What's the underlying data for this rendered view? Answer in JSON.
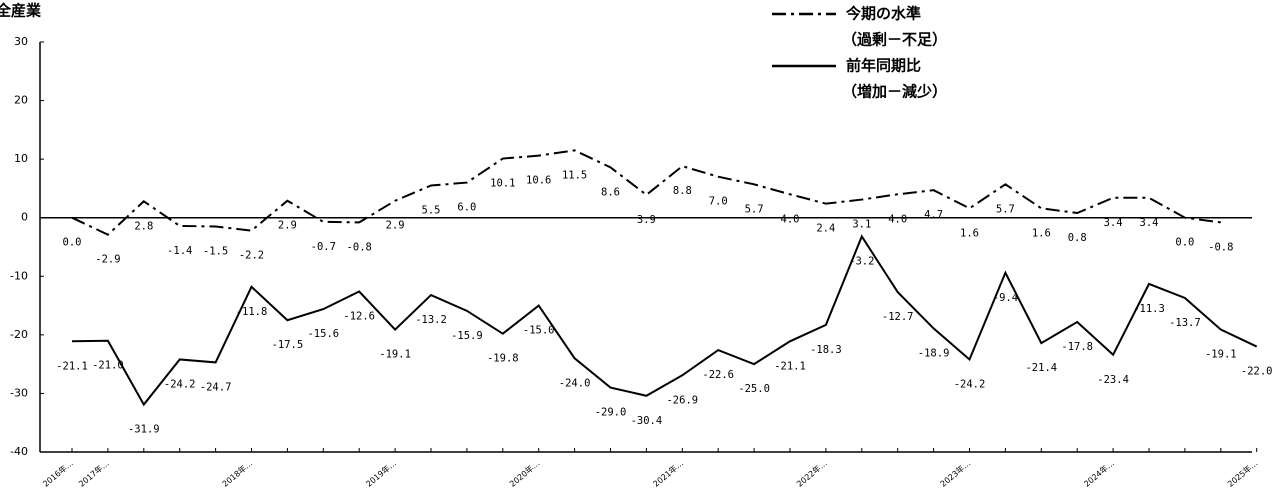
{
  "chart_data": {
    "type": "line",
    "title": "全産業",
    "categories": [
      "2016年…",
      "2017年…",
      null,
      null,
      null,
      "2018年…",
      null,
      null,
      null,
      "2019年…",
      null,
      null,
      null,
      "2020年…",
      null,
      null,
      null,
      "2021年…",
      null,
      null,
      null,
      "2022年…",
      null,
      null,
      null,
      "2023年…",
      null,
      null,
      null,
      "2024年…",
      null,
      null,
      null,
      "2025年…"
    ],
    "series": [
      {
        "name": "今期の水準",
        "note": "（過剰－不足）",
        "color": "#000000",
        "dash": "dashdot",
        "values": [
          0.0,
          -2.9,
          2.8,
          -1.4,
          -1.5,
          -2.2,
          2.9,
          -0.7,
          -0.8,
          2.9,
          5.5,
          6.0,
          10.1,
          10.6,
          11.5,
          8.6,
          3.9,
          8.8,
          7.0,
          5.7,
          4.0,
          2.4,
          3.1,
          4.0,
          4.7,
          1.6,
          5.7,
          1.6,
          0.8,
          3.4,
          3.4,
          0.0,
          -0.8,
          null
        ],
        "value_labels": [
          "0.0",
          "-2.9",
          "2.8",
          "-1.4",
          "-1.5",
          "-2.2",
          "2.9",
          "-0.7",
          "-0.8",
          "2.9",
          "5.5",
          "6.0",
          "10.1",
          "10.6",
          "11.5",
          "8.6",
          "3.9",
          "8.8",
          "7.0",
          "5.7",
          "4.0",
          "2.4",
          "3.1",
          "4.0",
          "4.7",
          "1.6",
          "5.7",
          "1.6",
          "0.8",
          "3.4",
          "3.4",
          "0.0",
          "-0.8",
          null
        ]
      },
      {
        "name": "前年同期比",
        "note": "（増加－減少）",
        "color": "#000000",
        "dash": "solid",
        "values": [
          -21.1,
          -21.0,
          -31.9,
          -24.2,
          -24.7,
          -11.8,
          -17.5,
          -15.6,
          -12.6,
          -19.1,
          -13.2,
          -15.9,
          -19.8,
          -15.0,
          -24.0,
          -29.0,
          -30.4,
          -26.9,
          -22.6,
          -25.0,
          -21.1,
          -18.3,
          -3.2,
          -12.7,
          -18.9,
          -24.2,
          -9.4,
          -21.4,
          -17.8,
          -23.4,
          -11.3,
          -13.7,
          -19.1,
          -22.0
        ],
        "value_labels": [
          "-21.1",
          "-21.0",
          "-31.9",
          "-24.2",
          "-24.7",
          "-11.8",
          "-17.5",
          "-15.6",
          "-12.6",
          "-19.1",
          "-13.2",
          "-15.9",
          "-19.8",
          "-15.0",
          "-24.0",
          "-29.0",
          "-30.4",
          "-26.9",
          "-22.6",
          "-25.0",
          "-21.1",
          "-18.3",
          "-3.2",
          "-12.7",
          "-18.9",
          "-24.2",
          "-9.4",
          "-21.4",
          "-17.8",
          "-23.4",
          "-11.3",
          "-13.7",
          "-19.1",
          "-22.0"
        ]
      }
    ],
    "ylim": [
      -40,
      30
    ],
    "yticks": [
      -40,
      -30,
      -20,
      -10,
      0,
      10,
      20,
      30
    ],
    "grid": false
  }
}
